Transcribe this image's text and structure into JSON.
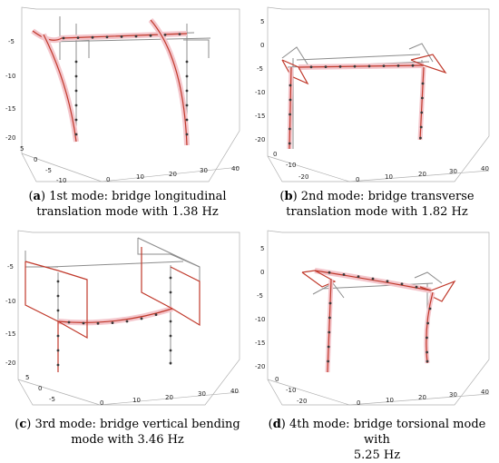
{
  "figure": {
    "panels": [
      {
        "id": "a",
        "caption_label": "a",
        "caption_line1": " 1st mode: bridge longitudinal",
        "caption_line2": "translation mode with 1.38 Hz",
        "z_ticks": [
          "-5",
          "-10",
          "-15",
          "-20"
        ],
        "x_ticks": [
          "0",
          "10",
          "20",
          "30",
          "40"
        ],
        "y_ticks": [
          "5",
          "0",
          "-5",
          "-10"
        ]
      },
      {
        "id": "b",
        "caption_label": "b",
        "caption_line1": " 2nd mode: bridge transverse",
        "caption_line2": "translation mode with 1.82 Hz",
        "z_ticks": [
          "5",
          "0",
          "-5",
          "-10",
          "-15",
          "-20"
        ],
        "x_ticks": [
          "0",
          "10",
          "20",
          "30",
          "40"
        ],
        "y_ticks": [
          "0",
          "-10",
          "-20"
        ]
      },
      {
        "id": "c",
        "caption_label": "c",
        "caption_line1": " 3rd mode: bridge vertical bending",
        "caption_line2": "mode with 3.46 Hz",
        "z_ticks": [
          "-5",
          "-10",
          "-15",
          "-20"
        ],
        "x_ticks": [
          "0",
          "10",
          "20",
          "30",
          "40"
        ],
        "y_ticks": [
          "5",
          "0",
          "-5"
        ]
      },
      {
        "id": "d",
        "caption_label": "d",
        "caption_line1": " 4th mode: bridge torsional mode with",
        "caption_line2": "5.25 Hz",
        "z_ticks": [
          "5",
          "0",
          "-5",
          "-10",
          "-15",
          "-20"
        ],
        "x_ticks": [
          "0",
          "10",
          "20",
          "30",
          "40"
        ],
        "y_ticks": [
          "0",
          "-10",
          "-20"
        ]
      }
    ],
    "colors": {
      "undeformed": "#8c8c8c",
      "deformed": "#c0392b",
      "highlight": "#f4c6cc",
      "node": "#3a3a3a",
      "axes": "#b0b0b0"
    }
  }
}
